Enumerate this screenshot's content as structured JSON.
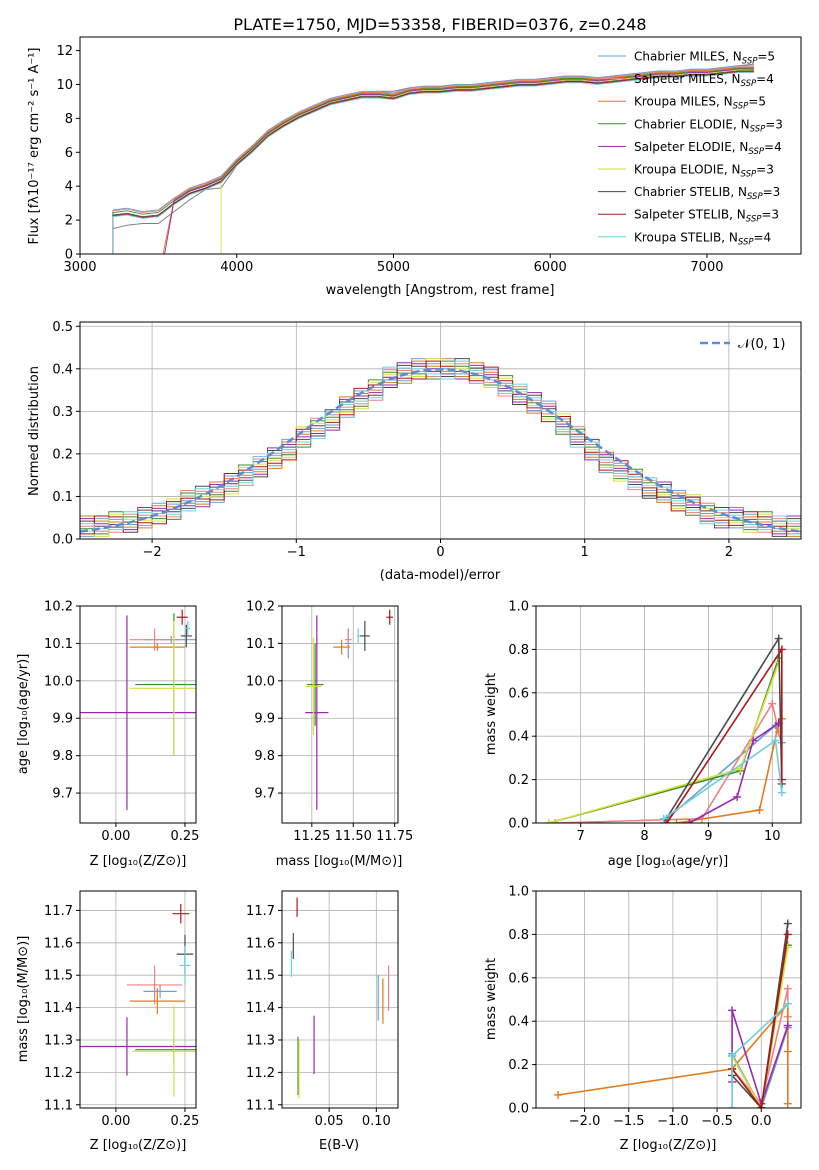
{
  "figure_title": "PLATE=1750, MJD=53358, FIBERID=0376, z=0.248",
  "palette": [
    "#6a9fd8",
    "#f08080",
    "#e07b1a",
    "#3c8d2f",
    "#9b27b0",
    "#d6df3c",
    "#4a4a4a",
    "#b01515",
    "#6cd0dc"
  ],
  "legend_series": [
    {
      "base": "Chabrier MILES, N",
      "sub": "SSP",
      "tail": "=5"
    },
    {
      "base": "Salpeter MILES, N",
      "sub": "SSP",
      "tail": "=4"
    },
    {
      "base": "Kroupa MILES, N",
      "sub": "SSP",
      "tail": "=5"
    },
    {
      "base": "Chabrier ELODIE, N",
      "sub": "SSP",
      "tail": "=3"
    },
    {
      "base": "Salpeter ELODIE, N",
      "sub": "SSP",
      "tail": "=4"
    },
    {
      "base": "Kroupa ELODIE, N",
      "sub": "SSP",
      "tail": "=3"
    },
    {
      "base": "Chabrier STELIB, N",
      "sub": "SSP",
      "tail": "=3"
    },
    {
      "base": "Salpeter STELIB, N",
      "sub": "SSP",
      "tail": "=3"
    },
    {
      "base": "Kroupa STELIB, N",
      "sub": "SSP",
      "tail": "=4"
    }
  ],
  "chart_data": [
    {
      "id": "spectrum",
      "type": "line",
      "xlabel": "wavelength [Angstrom, rest frame]",
      "ylabel": "Flux [fλ10⁻¹⁷ erg cm⁻² s⁻¹ A⁻¹]",
      "xlim": [
        3000,
        7600
      ],
      "ylim": [
        0,
        12.8
      ],
      "xticks": [
        3000,
        4000,
        5000,
        6000,
        7000
      ],
      "yticks": [
        0,
        2,
        4,
        6,
        8,
        10,
        12
      ],
      "data_line": {
        "color": "#808080",
        "x": [
          3210,
          3300,
          3400,
          3500,
          3600,
          3700,
          3800,
          3900,
          4000,
          4100,
          4200,
          4300,
          4400,
          4500,
          4600,
          4700,
          4800,
          4900,
          5000,
          5100,
          5200,
          5300,
          5400,
          5500,
          5600,
          5700,
          5800,
          5900,
          6000,
          6100,
          6200,
          6300,
          6400,
          6500,
          6600,
          6700,
          6800,
          6900,
          7000,
          7100,
          7200,
          7300
        ],
        "y": [
          1.5,
          1.7,
          1.8,
          1.8,
          2.5,
          3.2,
          3.8,
          3.9,
          5.2,
          6.1,
          7.0,
          7.6,
          8.2,
          8.6,
          9.0,
          9.3,
          9.5,
          9.6,
          9.6,
          9.8,
          9.9,
          9.9,
          10.0,
          10.0,
          10.1,
          10.2,
          10.3,
          10.3,
          10.4,
          10.5,
          10.5,
          10.4,
          10.5,
          10.6,
          10.7,
          10.8,
          10.7,
          10.9,
          10.9,
          11.0,
          11.1,
          11.2
        ]
      },
      "model_x": [
        3210,
        3300,
        3400,
        3500,
        3600,
        3700,
        3800,
        3900,
        4000,
        4100,
        4200,
        4300,
        4400,
        4500,
        4600,
        4700,
        4800,
        4900,
        5000,
        5100,
        5200,
        5300,
        5400,
        5500,
        5600,
        5700,
        5800,
        5900,
        6000,
        6100,
        6200,
        6300,
        6400,
        6500,
        6600,
        6700,
        6800,
        6900,
        7000,
        7100,
        7200,
        7300
      ],
      "model_y": [
        2.6,
        2.7,
        2.5,
        2.6,
        3.3,
        3.9,
        4.2,
        4.6,
        5.6,
        6.4,
        7.3,
        7.9,
        8.4,
        8.8,
        9.2,
        9.4,
        9.6,
        9.6,
        9.5,
        9.8,
        9.9,
        9.9,
        10.0,
        10.0,
        10.1,
        10.2,
        10.3,
        10.3,
        10.4,
        10.5,
        10.5,
        10.4,
        10.5,
        10.6,
        10.7,
        10.8,
        10.8,
        10.9,
        10.9,
        11.0,
        11.1,
        11.1
      ],
      "model_x_start": [
        3210,
        3210,
        3530,
        3210,
        3540,
        3900,
        3210,
        3210,
        3210
      ],
      "series_colors": [
        "#6a9fd8",
        "#f08080",
        "#e07b1a",
        "#3c8d2f",
        "#9b27b0",
        "#d6df3c",
        "#4a4a4a",
        "#b01515",
        "#6cd0dc"
      ]
    },
    {
      "id": "residual_hist",
      "type": "line",
      "xlabel": "(data-model)/error",
      "ylabel": "Normed distribution",
      "xlim": [
        -2.5,
        2.5
      ],
      "ylim": [
        0,
        0.51
      ],
      "xticks": [
        -2,
        -1,
        0,
        1,
        2
      ],
      "yticks": [
        0,
        0.1,
        0.2,
        0.3,
        0.4,
        0.5
      ],
      "legend": "𝒩(0, 1)",
      "bin_edges": [
        -2.5,
        -2.4,
        -2.3,
        -2.2,
        -2.1,
        -2.0,
        -1.9,
        -1.8,
        -1.7,
        -1.6,
        -1.5,
        -1.4,
        -1.3,
        -1.2,
        -1.1,
        -1.0,
        -0.9,
        -0.8,
        -0.7,
        -0.6,
        -0.5,
        -0.4,
        -0.3,
        -0.2,
        -0.1,
        0.0,
        0.1,
        0.2,
        0.3,
        0.4,
        0.5,
        0.6,
        0.7,
        0.8,
        0.9,
        1.0,
        1.1,
        1.2,
        1.3,
        1.4,
        1.5,
        1.6,
        1.7,
        1.8,
        1.9,
        2.0,
        2.1,
        2.2,
        2.3,
        2.4,
        2.5
      ],
      "hist_heights": [
        0.03,
        0.03,
        0.04,
        0.04,
        0.05,
        0.06,
        0.07,
        0.09,
        0.1,
        0.11,
        0.13,
        0.15,
        0.17,
        0.19,
        0.21,
        0.24,
        0.26,
        0.28,
        0.31,
        0.33,
        0.35,
        0.38,
        0.39,
        0.4,
        0.4,
        0.4,
        0.4,
        0.39,
        0.38,
        0.36,
        0.34,
        0.32,
        0.3,
        0.27,
        0.24,
        0.21,
        0.18,
        0.16,
        0.14,
        0.12,
        0.11,
        0.09,
        0.08,
        0.06,
        0.05,
        0.05,
        0.04,
        0.04,
        0.03,
        0.03
      ],
      "series_colors": [
        "#6a9fd8",
        "#f08080",
        "#e07b1a",
        "#3c8d2f",
        "#9b27b0",
        "#d6df3c",
        "#4a4a4a",
        "#b01515",
        "#6cd0dc"
      ]
    },
    {
      "id": "age_vs_Z",
      "type": "scatter",
      "xlabel": "Z [log₁₀(Z/Z⊙)]",
      "ylabel": "age  [log₁₀(age/yr)]",
      "xlim": [
        -0.13,
        0.29
      ],
      "ylim": [
        9.62,
        10.2
      ],
      "xticks": [
        0.0,
        0.25
      ],
      "yticks": [
        9.7,
        9.8,
        9.9,
        10.0,
        10.1,
        10.2
      ],
      "points": [
        {
          "x": 0.2,
          "y": 10.11,
          "xerr": 0.1,
          "yerr": 0.01
        },
        {
          "x": 0.14,
          "y": 10.11,
          "xerr": 0.09,
          "yerr": 0.03
        },
        {
          "x": 0.15,
          "y": 10.09,
          "xerr": 0.1,
          "yerr": 0.01
        },
        {
          "x": 0.21,
          "y": 9.99,
          "xerr": 0.14,
          "yerr": 0.19
        },
        {
          "x": 0.04,
          "y": 9.915,
          "xerr": 0.27,
          "yerr": 0.26
        },
        {
          "x": 0.21,
          "y": 9.98,
          "xerr": 0.16,
          "yerr": 0.18
        },
        {
          "x": 0.255,
          "y": 10.12,
          "xerr": 0.02,
          "yerr": 0.03
        },
        {
          "x": 0.24,
          "y": 10.17,
          "xerr": 0.02,
          "yerr": 0.02
        },
        {
          "x": 0.26,
          "y": 10.14,
          "xerr": 0.01,
          "yerr": 0.02
        }
      ]
    },
    {
      "id": "age_vs_mass",
      "type": "scatter",
      "xlabel": "mass [log₁₀(M/M⊙)]",
      "ylabel": "",
      "xlim": [
        11.07,
        11.77
      ],
      "ylim": [
        9.62,
        10.2
      ],
      "xticks": [
        11.25,
        11.5,
        11.75
      ],
      "yticks": [
        9.7,
        9.8,
        9.9,
        10.0,
        10.1,
        10.2
      ],
      "points": [
        {
          "x": 11.47,
          "y": 10.1,
          "xerr": 0.02,
          "yerr": 0.04
        },
        {
          "x": 11.47,
          "y": 10.11,
          "xerr": 0.02,
          "yerr": 0.03
        },
        {
          "x": 11.43,
          "y": 10.09,
          "xerr": 0.05,
          "yerr": 0.02
        },
        {
          "x": 11.27,
          "y": 9.99,
          "xerr": 0.05,
          "yerr": 0.11
        },
        {
          "x": 11.28,
          "y": 9.915,
          "xerr": 0.07,
          "yerr": 0.26
        },
        {
          "x": 11.26,
          "y": 9.985,
          "xerr": 0.05,
          "yerr": 0.13
        },
        {
          "x": 11.57,
          "y": 10.12,
          "xerr": 0.03,
          "yerr": 0.04
        },
        {
          "x": 11.72,
          "y": 10.17,
          "xerr": 0.02,
          "yerr": 0.02
        },
        {
          "x": 11.53,
          "y": 10.12,
          "xerr": 0.01,
          "yerr": 0.02
        }
      ]
    },
    {
      "id": "mass_weight_vs_age",
      "type": "line",
      "xlabel": "age  [log₁₀(age/yr)]",
      "ylabel": "mass weight",
      "xlim": [
        6.3,
        10.45
      ],
      "ylim": [
        0,
        1.0
      ],
      "xticks": [
        7,
        8,
        9,
        10
      ],
      "yticks": [
        0.0,
        0.2,
        0.4,
        0.6,
        0.8,
        1.0
      ],
      "series": [
        {
          "x": [
            8.35,
            10.05,
            10.15
          ],
          "y": [
            0.02,
            0.45,
            0.37
          ]
        },
        {
          "x": [
            6.6,
            8.9,
            10.0,
            10.1
          ],
          "y": [
            0.0,
            0.02,
            0.55,
            0.42
          ]
        },
        {
          "x": [
            8.5,
            9.8,
            10.1,
            10.15
          ],
          "y": [
            0.0,
            0.06,
            0.46,
            0.48
          ]
        },
        {
          "x": [
            6.5,
            9.5,
            10.1
          ],
          "y": [
            0.0,
            0.24,
            0.76
          ]
        },
        {
          "x": [
            8.7,
            9.45,
            9.7,
            10.1
          ],
          "y": [
            0.0,
            0.12,
            0.38,
            0.46
          ]
        },
        {
          "x": [
            6.5,
            9.5,
            10.1
          ],
          "y": [
            0.0,
            0.25,
            0.74
          ]
        },
        {
          "x": [
            8.3,
            10.1,
            10.15
          ],
          "y": [
            0.0,
            0.85,
            0.18
          ]
        },
        {
          "x": [
            8.35,
            10.15,
            10.15
          ],
          "y": [
            0.0,
            0.8,
            0.2
          ]
        },
        {
          "x": [
            8.3,
            10.05,
            10.15
          ],
          "y": [
            0.02,
            0.38,
            0.14
          ]
        }
      ]
    },
    {
      "id": "mass_vs_Z",
      "type": "scatter",
      "xlabel": "Z [log₁₀(Z/Z⊙)]",
      "ylabel": "mass [log₁₀(M/M⊙)]",
      "xlim": [
        -0.13,
        0.29
      ],
      "ylim": [
        11.09,
        11.76
      ],
      "xticks": [
        0.0,
        0.25
      ],
      "yticks": [
        11.1,
        11.2,
        11.3,
        11.4,
        11.5,
        11.6,
        11.7
      ],
      "points": [
        {
          "x": 0.16,
          "y": 11.45,
          "xerr": 0.06,
          "yerr": 0.02
        },
        {
          "x": 0.14,
          "y": 11.47,
          "xerr": 0.1,
          "yerr": 0.06
        },
        {
          "x": 0.15,
          "y": 11.42,
          "xerr": 0.1,
          "yerr": 0.04
        },
        {
          "x": 0.21,
          "y": 11.27,
          "xerr": 0.14,
          "yerr": 0.04
        },
        {
          "x": 0.04,
          "y": 11.28,
          "xerr": 0.26,
          "yerr": 0.09
        },
        {
          "x": 0.21,
          "y": 11.265,
          "xerr": 0.15,
          "yerr": 0.14
        },
        {
          "x": 0.25,
          "y": 11.565,
          "xerr": 0.03,
          "yerr": 0.06
        },
        {
          "x": 0.235,
          "y": 11.69,
          "xerr": 0.03,
          "yerr": 0.03
        },
        {
          "x": 0.25,
          "y": 11.53,
          "xerr": 0.02,
          "yerr": 0.06
        }
      ]
    },
    {
      "id": "mass_vs_EBV",
      "type": "scatter",
      "xlabel": "E(B-V)",
      "ylabel": "",
      "xlim": [
        0.0,
        0.123
      ],
      "ylim": [
        11.09,
        11.76
      ],
      "xticks": [
        0.05,
        0.1
      ],
      "yticks": [
        11.1,
        11.2,
        11.3,
        11.4,
        11.5,
        11.6,
        11.7
      ],
      "points": [
        {
          "x": 0.102,
          "y": 11.43,
          "xerr": 0.0,
          "yerr": 0.07
        },
        {
          "x": 0.113,
          "y": 11.46,
          "xerr": 0.0,
          "yerr": 0.07
        },
        {
          "x": 0.107,
          "y": 11.42,
          "xerr": 0.0,
          "yerr": 0.07
        },
        {
          "x": 0.017,
          "y": 11.22,
          "xerr": 0.0,
          "yerr": 0.09
        },
        {
          "x": 0.034,
          "y": 11.285,
          "xerr": 0.0,
          "yerr": 0.09
        },
        {
          "x": 0.018,
          "y": 11.21,
          "xerr": 0.0,
          "yerr": 0.09
        },
        {
          "x": 0.012,
          "y": 11.59,
          "xerr": 0.0,
          "yerr": 0.04
        },
        {
          "x": 0.016,
          "y": 11.71,
          "xerr": 0.0,
          "yerr": 0.03
        },
        {
          "x": 0.01,
          "y": 11.535,
          "xerr": 0.0,
          "yerr": 0.04
        }
      ]
    },
    {
      "id": "mass_weight_vs_Z",
      "type": "line",
      "xlabel": "Z [log₁₀(Z/Z⊙)]",
      "ylabel": "mass weight",
      "xlim": [
        -2.55,
        0.45
      ],
      "ylim": [
        0,
        1.0
      ],
      "xticks": [
        -2.0,
        -1.5,
        -1.0,
        -0.5,
        0.0
      ],
      "yticks": [
        0.0,
        0.2,
        0.4,
        0.6,
        0.8,
        1.0
      ],
      "series": [
        {
          "x": [
            -0.33,
            0.0,
            0.3,
            0.3
          ],
          "y": [
            0.25,
            0.0,
            0.37,
            0.38
          ]
        },
        {
          "x": [
            -0.33,
            0.0,
            0.3,
            0.3
          ],
          "y": [
            0.18,
            0.02,
            0.55,
            0.42
          ]
        },
        {
          "x": [
            -2.3,
            -0.33,
            0.3,
            0.3,
            0.3
          ],
          "y": [
            0.06,
            0.18,
            0.48,
            0.26,
            0.02
          ]
        },
        {
          "x": [
            -0.33,
            0.0,
            0.3
          ],
          "y": [
            0.24,
            0.0,
            0.75
          ]
        },
        {
          "x": [
            -0.33,
            -0.33,
            0.0,
            0.3
          ],
          "y": [
            0.12,
            0.45,
            0.02,
            0.38
          ]
        },
        {
          "x": [
            -0.33,
            0.0,
            0.3
          ],
          "y": [
            0.24,
            0.0,
            0.74
          ]
        },
        {
          "x": [
            -0.33,
            0.0,
            0.3
          ],
          "y": [
            0.15,
            0.0,
            0.85
          ]
        },
        {
          "x": [
            -0.33,
            0.0,
            0.3
          ],
          "y": [
            0.18,
            0.0,
            0.8
          ]
        },
        {
          "x": [
            -0.33,
            -0.33,
            0.3
          ],
          "y": [
            0.0,
            0.24,
            0.48
          ]
        }
      ]
    }
  ]
}
